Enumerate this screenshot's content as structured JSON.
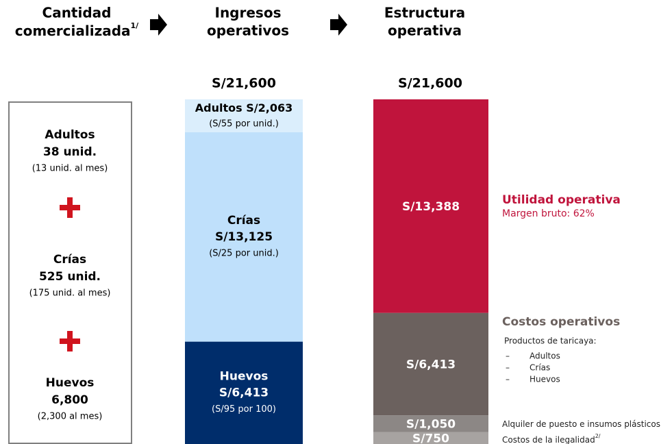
{
  "headers": [
    {
      "lines": [
        "Cantidad",
        "comercializada"
      ],
      "sup": "1/"
    },
    {
      "lines": [
        "Ingresos",
        "operativos"
      ]
    },
    {
      "lines": [
        "Estructura",
        "operativa"
      ]
    }
  ],
  "totals": [
    "S/21,600",
    "S/21,600"
  ],
  "quantity": [
    {
      "name": "Adultos",
      "amount": "38 unid.",
      "detail": "(13 unid. al mes)"
    },
    {
      "name": "Crías",
      "amount": "525 unid.",
      "detail": "(175 unid. al mes)"
    },
    {
      "name": "Huevos",
      "amount": "6,800",
      "detail": "(2,300 al mes)"
    }
  ],
  "revenue": {
    "segments": [
      {
        "name": "Adultos",
        "value": 2063,
        "label": "S/2,063",
        "detail": "(S/55 por unid.)",
        "color": "#dbeefc"
      },
      {
        "name": "Crías",
        "value": 13125,
        "label": "S/13,125",
        "detail": "(S/25 por unid.)",
        "color": "#bfe0fb"
      },
      {
        "name": "Huevos",
        "value": 6413,
        "label": "S/6,413",
        "detail": "(S/95 por 100)",
        "color": "#002d6b"
      }
    ]
  },
  "structure": {
    "segments": [
      {
        "value": 13388,
        "label": "S/13,388",
        "color": "#c0143c"
      },
      {
        "value": 6413,
        "label": "S/6,413",
        "color": "#6b615e"
      },
      {
        "value": 1050,
        "label": "S/1,050",
        "color": "#8c8785"
      },
      {
        "value": 750,
        "label": "S/750",
        "color": "#a7a3a1"
      }
    ]
  },
  "annotations": {
    "profit": {
      "title": "Utilidad operativa",
      "note": "Margen bruto: 62%"
    },
    "costs": {
      "title": "Costos operativos",
      "intro": "Productos de taricaya:",
      "marker": "–",
      "items": [
        "Adultos",
        "Crías",
        "Huevos"
      ]
    },
    "rent": "Alquiler de puesto e insumos plásticos",
    "illegality": {
      "text": "Costos de la ilegalidad",
      "sup": "2/"
    }
  }
}
